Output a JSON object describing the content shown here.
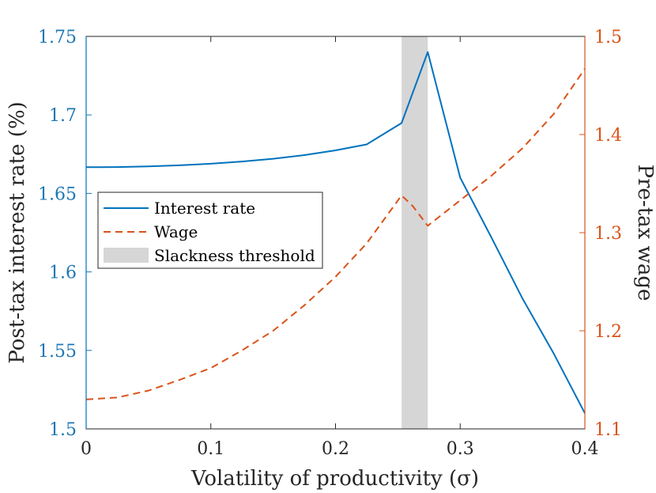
{
  "chart_data": {
    "type": "line",
    "title": "",
    "xlabel": "Volatility of productivity (σ)",
    "ylabel_left": "Post-tax interest rate (%)",
    "ylabel_right": "Pre-tax wage",
    "xlim": [
      0,
      0.4
    ],
    "ylim_left": [
      1.5,
      1.75
    ],
    "ylim_right": [
      1.1,
      1.5
    ],
    "x_ticks": [
      0,
      0.1,
      0.2,
      0.3,
      0.4
    ],
    "x_tick_labels": [
      "0",
      "0.1",
      "0.2",
      "0.3",
      "0.4"
    ],
    "y_left_ticks": [
      1.5,
      1.55,
      1.6,
      1.65,
      1.7,
      1.75
    ],
    "y_left_tick_labels": [
      "1.5",
      "1.55",
      "1.6",
      "1.65",
      "1.7",
      "1.75"
    ],
    "y_right_ticks": [
      1.1,
      1.2,
      1.3,
      1.4,
      1.5
    ],
    "y_right_tick_labels": [
      "1.1",
      "1.2",
      "1.3",
      "1.4",
      "1.5"
    ],
    "colors": {
      "left_axis": "#1f77b4",
      "right_axis": "#d95319",
      "shade": "#d6d6d6"
    },
    "shaded_region": {
      "name": "Slackness threshold",
      "x_range": [
        0.253,
        0.274
      ]
    },
    "series": [
      {
        "name": "Interest rate",
        "axis": "left",
        "style": "solid",
        "color": "#0072bd",
        "x": [
          0,
          0.025,
          0.05,
          0.075,
          0.1,
          0.125,
          0.15,
          0.175,
          0.2,
          0.225,
          0.253,
          0.274,
          0.3,
          0.325,
          0.35,
          0.375,
          0.4
        ],
        "y": [
          1.6667,
          1.6668,
          1.6672,
          1.6679,
          1.6689,
          1.6703,
          1.6721,
          1.6744,
          1.6774,
          1.6812,
          1.6948,
          1.74,
          1.66,
          1.622,
          1.583,
          1.548,
          1.51
        ]
      },
      {
        "name": "Wage",
        "axis": "right",
        "style": "dashed",
        "color": "#d95319",
        "x": [
          0,
          0.025,
          0.05,
          0.075,
          0.1,
          0.125,
          0.15,
          0.175,
          0.2,
          0.225,
          0.253,
          0.262,
          0.274,
          0.3,
          0.325,
          0.35,
          0.375,
          0.4
        ],
        "y": [
          1.13,
          1.132,
          1.139,
          1.15,
          1.162,
          1.18,
          1.2,
          1.226,
          1.255,
          1.289,
          1.338,
          1.327,
          1.307,
          1.333,
          1.358,
          1.386,
          1.421,
          1.467
        ]
      }
    ],
    "legend": {
      "position": "center-left",
      "entries": [
        "Interest rate",
        "Wage",
        "Slackness threshold"
      ]
    }
  }
}
